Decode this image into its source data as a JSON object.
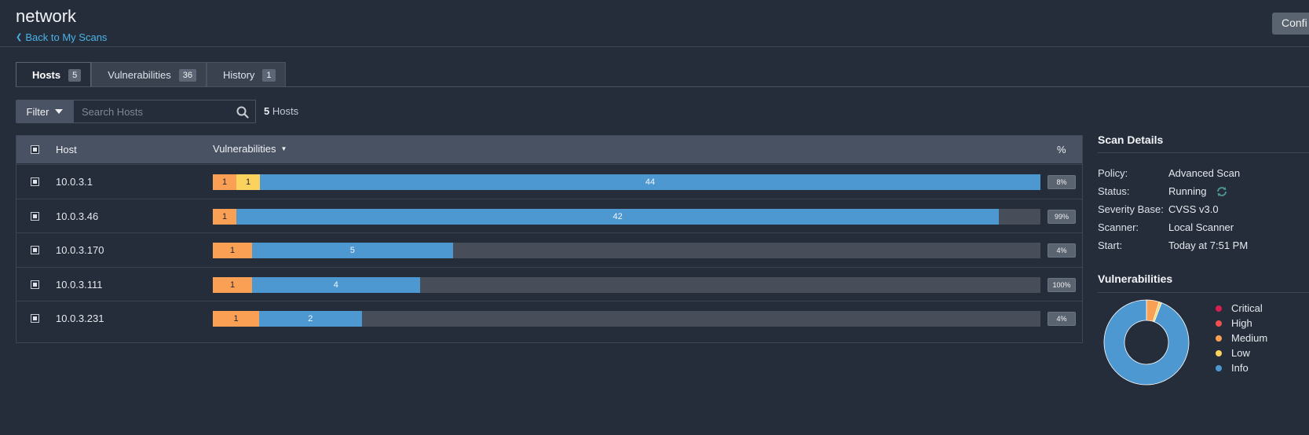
{
  "page": {
    "title": "network",
    "back_link": "Back to My Scans",
    "configure_button": "Confi"
  },
  "tabs": [
    {
      "label": "Hosts",
      "count": "5",
      "active": true
    },
    {
      "label": "Vulnerabilities",
      "count": "36",
      "active": false
    },
    {
      "label": "History",
      "count": "1",
      "active": false
    }
  ],
  "filter": {
    "button_label": "Filter",
    "search_placeholder": "Search Hosts",
    "count_number": "5",
    "count_label": "Hosts"
  },
  "table": {
    "headers": {
      "host": "Host",
      "vulnerabilities": "Vulnerabilities",
      "percent": "%"
    },
    "rows": [
      {
        "host": "10.0.3.1",
        "medium": 1,
        "low": 1,
        "info": 44,
        "fill": 1.0,
        "percent": "8%"
      },
      {
        "host": "10.0.3.46",
        "medium": 1,
        "low": 0,
        "info": 42,
        "fill": 0.95,
        "percent": "99%"
      },
      {
        "host": "10.0.3.170",
        "medium": 1,
        "low": 0,
        "info": 5,
        "fill": 0.29,
        "percent": "4%"
      },
      {
        "host": "10.0.3.111",
        "medium": 1,
        "low": 0,
        "info": 4,
        "fill": 0.25,
        "percent": "100%"
      },
      {
        "host": "10.0.3.231",
        "medium": 1,
        "low": 0,
        "info": 2,
        "fill": 0.18,
        "percent": "4%"
      }
    ]
  },
  "scan_details": {
    "title": "Scan Details",
    "items": [
      {
        "key": "Policy:",
        "value": "Advanced Scan"
      },
      {
        "key": "Status:",
        "value": "Running"
      },
      {
        "key": "Severity Base:",
        "value": "CVSS v3.0"
      },
      {
        "key": "Scanner:",
        "value": "Local Scanner"
      },
      {
        "key": "Start:",
        "value": "Today at 7:51 PM"
      }
    ]
  },
  "vulnerabilities": {
    "title": "Vulnerabilities",
    "legend": [
      {
        "label": "Critical",
        "color": "#d81f4f"
      },
      {
        "label": "High",
        "color": "#f0504f"
      },
      {
        "label": "Medium",
        "color": "#f9a055"
      },
      {
        "label": "Low",
        "color": "#fbd25e"
      },
      {
        "label": "Info",
        "color": "#4e98d1"
      }
    ],
    "donut": [
      {
        "severity": "Critical",
        "value": 0
      },
      {
        "severity": "High",
        "value": 0
      },
      {
        "severity": "Medium",
        "value": 5
      },
      {
        "severity": "Low",
        "value": 1
      },
      {
        "severity": "Info",
        "value": 97
      }
    ]
  },
  "colors": {
    "background": "#252d3b",
    "accent_link": "#4ab3e6",
    "medium": "#f9a055",
    "low": "#fbd25e",
    "info": "#4e98d1"
  }
}
